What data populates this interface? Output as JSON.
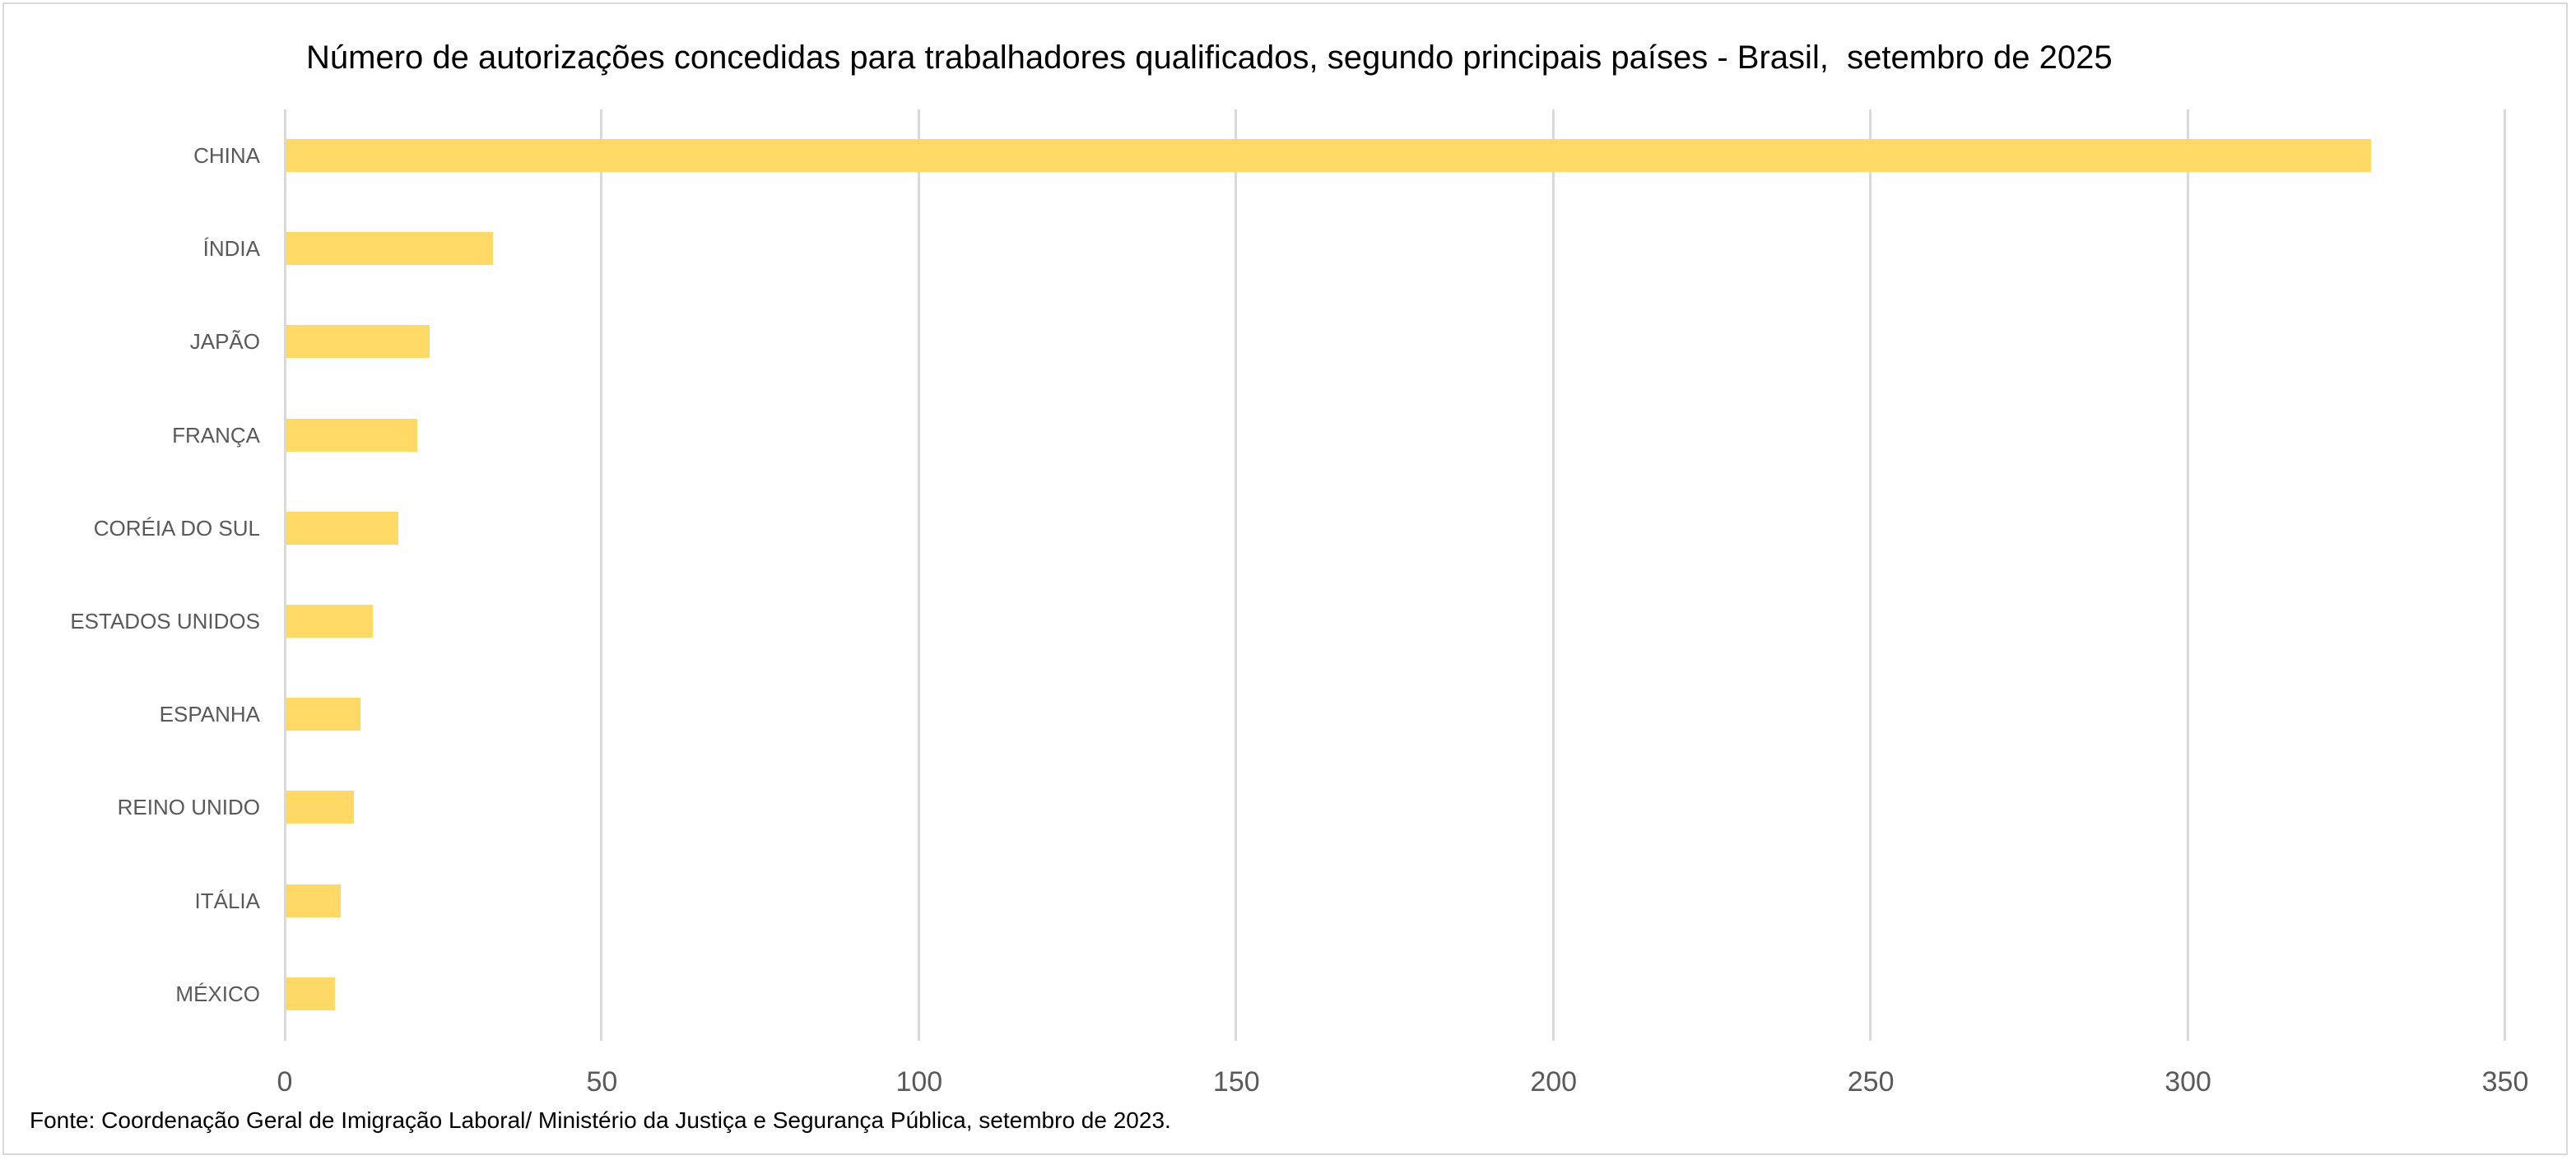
{
  "chart_data": {
    "type": "bar",
    "orientation": "horizontal",
    "title": "Número de autorizações concedidas para trabalhadores qualificados, segundo principais países - Brasil,  setembro de 2025",
    "categories": [
      "CHINA",
      "ÍNDIA",
      "JAPÃO",
      "FRANÇA",
      "CORÉIA DO SUL",
      "ESTADOS UNIDOS",
      "ESPANHA",
      "REINO UNIDO",
      "ITÁLIA",
      "MÉXICO"
    ],
    "values": [
      329,
      33,
      23,
      21,
      18,
      14,
      12,
      11,
      9,
      8
    ],
    "xlabel": "",
    "ylabel": "",
    "xlim": [
      0,
      350
    ],
    "x_ticks": [
      "0",
      "50",
      "100",
      "150",
      "200",
      "250",
      "300",
      "350"
    ],
    "grid": true,
    "legend": null,
    "bar_color": "#ffd966",
    "source": "Fonte: Coordenação Geral de Imigração Laboral/ Ministério da Justiça e Segurança Pública, setembro de 2023."
  },
  "colors": {
    "bar": "#ffd966",
    "gridline": "#d9d9d9",
    "label_text": "#595959",
    "title_text": "#000000"
  }
}
